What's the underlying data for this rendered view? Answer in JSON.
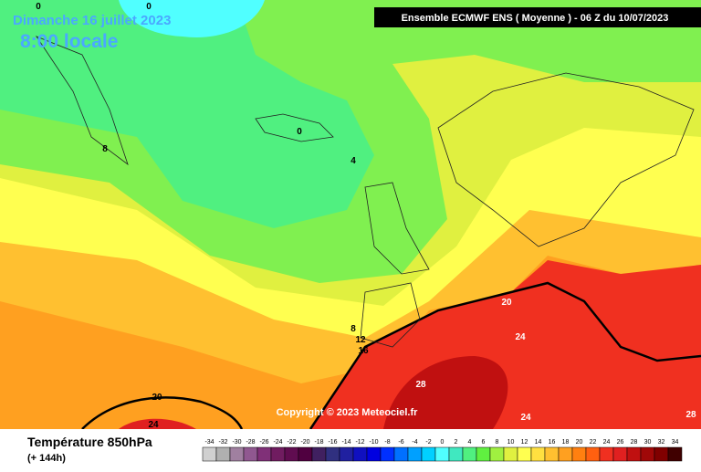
{
  "header": {
    "date": "Dimanche 16 juillet 2023",
    "time": "8:00 locale",
    "model": "Ensemble ECMWF ENS  ( Moyenne )  -  06 Z du 10/07/2023"
  },
  "copyright": "Copyright © 2023 Meteociel.fr",
  "footer": {
    "title": "Température 850hPa",
    "lead": "(+ 144h)"
  },
  "contour_labels": [
    0,
    0,
    0,
    4,
    8,
    8,
    12,
    16,
    20,
    24,
    28,
    20,
    24,
    24,
    28
  ],
  "legend": {
    "values": [
      -34,
      -32,
      -30,
      -28,
      -26,
      -24,
      -22,
      -20,
      -18,
      -16,
      -14,
      -12,
      -10,
      -8,
      -6,
      -4,
      -2,
      0,
      2,
      4,
      6,
      8,
      10,
      12,
      14,
      16,
      18,
      20,
      22,
      24,
      26,
      28,
      30,
      32,
      34
    ],
    "colors": [
      "#d0d0d0",
      "#b0b0b0",
      "#a080a0",
      "#905890",
      "#803078",
      "#701c60",
      "#600c50",
      "#500040",
      "#402060",
      "#303080",
      "#2020a0",
      "#1010c0",
      "#0000e0",
      "#0030ff",
      "#0070ff",
      "#00a0ff",
      "#00d0ff",
      "#50ffff",
      "#40e8c0",
      "#50f080",
      "#60f040",
      "#a0f040",
      "#e0f040",
      "#ffff50",
      "#ffe040",
      "#ffc030",
      "#ffa020",
      "#ff8010",
      "#ff6010",
      "#f03020",
      "#e02020",
      "#c01010",
      "#a00808",
      "#800000",
      "#400000"
    ]
  }
}
